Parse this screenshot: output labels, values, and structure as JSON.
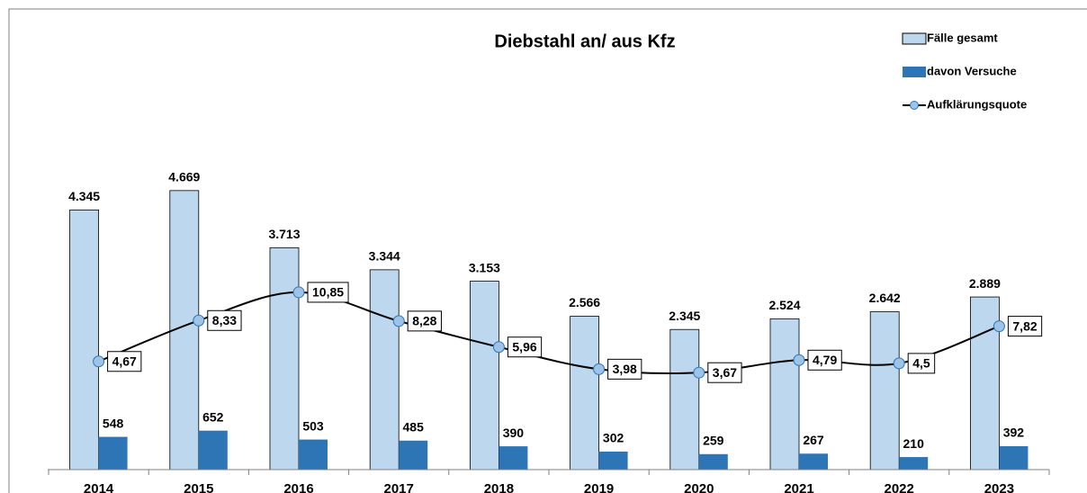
{
  "chart_data": {
    "type": "bar",
    "title": "Diebstahl an/ aus Kfz",
    "categories": [
      "2014",
      "2015",
      "2016",
      "2017",
      "2018",
      "2019",
      "2020",
      "2021",
      "2022",
      "2023"
    ],
    "ylim": [
      0,
      7000
    ],
    "y2lim": [
      -5,
      32.4
    ],
    "series": [
      {
        "name": "Fälle gesamt",
        "color": "#bdd7ee",
        "values": [
          4345,
          4669,
          3713,
          3344,
          3153,
          2566,
          2345,
          2524,
          2642,
          2889
        ],
        "value_labels": [
          "4.345",
          "4.669",
          "3.713",
          "3.344",
          "3.153",
          "2.566",
          "2.345",
          "2.524",
          "2.642",
          "2.889"
        ]
      },
      {
        "name": "davon Versuche",
        "color": "#2e75b6",
        "values": [
          548,
          652,
          503,
          485,
          390,
          302,
          259,
          267,
          210,
          392
        ]
      },
      {
        "name": "Aufklärungsquote",
        "type": "line",
        "axis": "y2",
        "color": "#000000",
        "marker_color": "#9dc3e6",
        "values": [
          4.67,
          8.33,
          10.85,
          8.28,
          5.96,
          3.98,
          3.67,
          4.79,
          4.5,
          7.82
        ],
        "value_labels": [
          "4,67",
          "8,33",
          "10,85",
          "8,28",
          "5,96",
          "3,98",
          "3,67",
          "4,79",
          "4,5",
          "7,82"
        ]
      }
    ],
    "legend": "top-right"
  }
}
